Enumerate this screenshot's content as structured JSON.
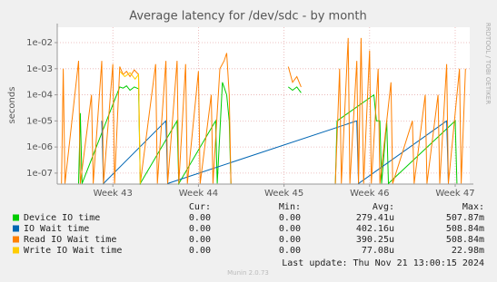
{
  "chart_data": {
    "type": "line",
    "title": "Average latency for /dev/sdc - by month",
    "ylabel": "seconds",
    "side_text": "RRDTOOL / TOBI OETIKER",
    "log_scale": true,
    "grid": true,
    "xlim": [
      42.35,
      47.17
    ],
    "xticks": [
      {
        "value": 43,
        "label": "Week 43"
      },
      {
        "value": 44,
        "label": "Week 44"
      },
      {
        "value": 45,
        "label": "Week 45"
      },
      {
        "value": 46,
        "label": "Week 46"
      },
      {
        "value": 47,
        "label": "Week 47"
      }
    ],
    "ylim": [
      3.8e-08,
      0.039
    ],
    "yticks": [
      {
        "value": 1e-07,
        "label": "1e-07"
      },
      {
        "value": 1e-06,
        "label": "1e-06"
      },
      {
        "value": 1e-05,
        "label": "1e-05"
      },
      {
        "value": 0.0001,
        "label": "1e-04"
      },
      {
        "value": 0.001,
        "label": "1e-03"
      },
      {
        "value": 0.01,
        "label": "1e-02"
      }
    ],
    "series": [
      {
        "name": "Device IO time",
        "color": "#00cc00",
        "x": [
          42.6,
          42.62,
          42.64,
          43.08,
          43.12,
          43.16,
          43.2,
          43.25,
          43.3,
          43.32,
          43.75,
          43.77,
          44.2,
          44.22,
          44.28,
          44.33,
          44.36,
          44.38,
          44.4,
          45.05,
          45.1,
          45.15,
          45.2,
          45.25,
          45.6,
          45.62,
          46.05,
          46.08,
          46.12,
          46.14,
          46.2,
          46.22,
          47.0,
          47.02
        ],
        "values": [
          4e-08,
          2e-05,
          4e-08,
          0.0002,
          0.00018,
          0.00022,
          0.00015,
          0.0002,
          0.00017,
          4e-08,
          1e-05,
          4e-08,
          1e-05,
          4e-08,
          0.0003,
          0.0001,
          1e-05,
          4e-08,
          null,
          0.0002,
          0.00015,
          0.0002,
          0.00012,
          null,
          4e-08,
          1e-05,
          0.0001,
          1e-05,
          1e-05,
          4e-08,
          1e-05,
          4e-08,
          1e-05,
          4e-08
        ]
      },
      {
        "name": "IO Wait time",
        "color": "#0066b3",
        "x": [
          42.87,
          42.89,
          43.62,
          43.64,
          45.85,
          45.87,
          46.9,
          46.92
        ],
        "values": [
          1e-05,
          4e-08,
          1e-05,
          4e-08,
          1e-05,
          4e-08,
          1e-05,
          4e-08
        ]
      },
      {
        "name": "Read IO Wait time",
        "color": "#ff8000",
        "x": [
          42.4,
          42.42,
          42.44,
          42.6,
          42.62,
          42.75,
          42.77,
          42.87,
          42.89,
          43.0,
          43.02,
          43.08,
          43.12,
          43.16,
          43.2,
          43.25,
          43.3,
          43.32,
          43.5,
          43.52,
          43.62,
          43.64,
          43.75,
          43.77,
          43.85,
          43.87,
          44.0,
          44.02,
          44.15,
          44.17,
          44.25,
          44.3,
          44.33,
          44.36,
          44.38,
          44.5,
          45.05,
          45.1,
          45.15,
          45.2,
          45.3,
          45.6,
          45.65,
          45.67,
          45.75,
          45.77,
          45.85,
          45.87,
          45.9,
          45.93,
          46.0,
          46.02,
          46.1,
          46.12,
          46.25,
          46.27,
          46.5,
          46.52,
          46.65,
          46.67,
          46.8,
          46.82,
          46.9,
          46.92,
          47.05,
          47.07,
          47.12
        ],
        "values": [
          4e-08,
          0.001,
          4e-08,
          0.002,
          4e-08,
          0.0001,
          4e-08,
          0.002,
          4e-08,
          0.0015,
          4e-08,
          0.0012,
          0.0006,
          0.0008,
          0.0005,
          0.0009,
          0.0006,
          4e-08,
          0.0015,
          4e-08,
          0.002,
          4e-08,
          0.002,
          4e-08,
          0.0015,
          4e-08,
          0.0008,
          4e-08,
          0.0001,
          4e-08,
          0.001,
          0.002,
          0.004,
          0.0001,
          4e-08,
          null,
          0.0012,
          0.0003,
          0.0005,
          0.0002,
          null,
          4e-08,
          0.001,
          4e-08,
          0.015,
          4e-08,
          0.002,
          4e-08,
          0.015,
          4e-08,
          0.005,
          4e-08,
          0.001,
          4e-08,
          0.0003,
          4e-08,
          1e-05,
          4e-08,
          0.0001,
          4e-08,
          0.0001,
          4e-08,
          0.0015,
          4e-08,
          0.001,
          4e-08,
          0.001
        ]
      },
      {
        "name": "Write IO Wait time",
        "color": "#ffcc00",
        "x": [
          43.08,
          43.14,
          43.2,
          43.26,
          43.3,
          43.32
        ],
        "values": [
          0.0008,
          0.0005,
          0.0007,
          0.0004,
          0.0006,
          4e-08
        ]
      }
    ],
    "summary": {
      "columns": [
        "Cur:",
        "Min:",
        "Avg:",
        "Max:"
      ],
      "rows": [
        [
          "0.00",
          "0.00",
          "279.41u",
          "507.87m"
        ],
        [
          "0.00",
          "0.00",
          "402.16u",
          "508.84m"
        ],
        [
          "0.00",
          "0.00",
          "390.25u",
          "508.84m"
        ],
        [
          "0.00",
          "0.00",
          "77.08u",
          "22.98m"
        ]
      ]
    },
    "last_update": "Last update: Thu Nov 21 13:00:15 2024",
    "footer": "Munin 2.0.73"
  }
}
